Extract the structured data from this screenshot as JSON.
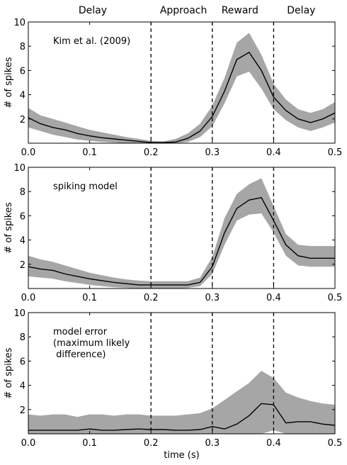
{
  "phase_labels": [
    {
      "text": "Delay",
      "center_t": 0.105
    },
    {
      "text": "Approach",
      "center_t": 0.253
    },
    {
      "text": "Reward",
      "center_t": 0.345
    },
    {
      "text": "Delay",
      "center_t": 0.445
    }
  ],
  "xlabel": "time (s)",
  "colors": {
    "band": "#a6a6a6",
    "mean": "#000000",
    "axes": "#000000"
  },
  "chart_data": [
    {
      "type": "area",
      "annotation": "Kim et al. (2009)",
      "ylabel": "# of spikes",
      "xlim": [
        0,
        0.5
      ],
      "ylim": [
        0,
        10
      ],
      "xticks": [
        0.0,
        0.1,
        0.2,
        0.3,
        0.4,
        0.5
      ],
      "yticks": [
        2,
        4,
        6,
        8,
        10
      ],
      "vlines": [
        0.2,
        0.3,
        0.4
      ],
      "x": [
        0.0,
        0.02,
        0.04,
        0.06,
        0.08,
        0.1,
        0.12,
        0.14,
        0.16,
        0.18,
        0.2,
        0.22,
        0.24,
        0.26,
        0.28,
        0.3,
        0.32,
        0.34,
        0.36,
        0.38,
        0.4,
        0.42,
        0.44,
        0.46,
        0.48,
        0.5
      ],
      "mean": [
        2.1,
        1.6,
        1.3,
        1.1,
        0.8,
        0.6,
        0.45,
        0.35,
        0.25,
        0.15,
        0.05,
        0.05,
        0.1,
        0.4,
        1.0,
        2.2,
        4.3,
        6.9,
        7.5,
        6.0,
        3.8,
        2.7,
        2.0,
        1.7,
        2.0,
        2.5
      ],
      "lower": [
        1.3,
        1.0,
        0.7,
        0.5,
        0.3,
        0.2,
        0.1,
        0.05,
        0.0,
        0.0,
        0.0,
        0.0,
        0.0,
        0.1,
        0.5,
        1.4,
        3.3,
        5.5,
        5.9,
        4.5,
        2.8,
        1.9,
        1.3,
        1.0,
        1.3,
        1.7
      ],
      "upper": [
        2.9,
        2.3,
        2.0,
        1.7,
        1.4,
        1.1,
        0.9,
        0.7,
        0.5,
        0.35,
        0.2,
        0.15,
        0.35,
        0.8,
        1.6,
        3.1,
        5.4,
        8.3,
        9.1,
        7.3,
        4.9,
        3.6,
        2.8,
        2.5,
        2.8,
        3.4
      ]
    },
    {
      "type": "area",
      "annotation": "spiking model",
      "ylabel": "# of spikes",
      "xlim": [
        0,
        0.5
      ],
      "ylim": [
        0,
        10
      ],
      "xticks": [
        0.0,
        0.1,
        0.2,
        0.3,
        0.4,
        0.5
      ],
      "yticks": [
        2,
        4,
        6,
        8,
        10
      ],
      "vlines": [
        0.2,
        0.3,
        0.4
      ],
      "x": [
        0.0,
        0.02,
        0.04,
        0.06,
        0.08,
        0.1,
        0.12,
        0.14,
        0.16,
        0.18,
        0.2,
        0.22,
        0.24,
        0.26,
        0.28,
        0.3,
        0.32,
        0.34,
        0.36,
        0.38,
        0.4,
        0.42,
        0.44,
        0.46,
        0.48,
        0.5
      ],
      "mean": [
        1.8,
        1.6,
        1.5,
        1.2,
        1.0,
        0.8,
        0.65,
        0.5,
        0.4,
        0.3,
        0.3,
        0.3,
        0.3,
        0.3,
        0.5,
        1.8,
        4.6,
        6.6,
        7.3,
        7.5,
        5.6,
        3.6,
        2.7,
        2.5,
        2.5,
        2.5
      ],
      "lower": [
        1.0,
        0.9,
        0.8,
        0.6,
        0.45,
        0.3,
        0.2,
        0.1,
        0.05,
        0.0,
        0.0,
        0.0,
        0.0,
        0.05,
        0.2,
        1.2,
        3.6,
        5.6,
        6.1,
        6.2,
        4.6,
        2.7,
        1.9,
        1.8,
        1.8,
        1.8
      ],
      "upper": [
        2.7,
        2.4,
        2.2,
        1.9,
        1.6,
        1.3,
        1.1,
        0.9,
        0.75,
        0.65,
        0.6,
        0.6,
        0.6,
        0.6,
        0.9,
        2.6,
        5.8,
        7.8,
        8.6,
        9.1,
        6.8,
        4.5,
        3.6,
        3.5,
        3.5,
        3.5
      ]
    },
    {
      "type": "area",
      "annotation": "model error\n(maximum likely\n difference)",
      "ylabel": "# of spikes",
      "xlabel": "time (s)",
      "xlim": [
        0,
        0.5
      ],
      "ylim": [
        0,
        10
      ],
      "xticks": [
        0.0,
        0.1,
        0.2,
        0.3,
        0.4,
        0.5
      ],
      "yticks": [
        2,
        4,
        6,
        8,
        10
      ],
      "vlines": [
        0.2,
        0.3,
        0.4
      ],
      "x": [
        0.0,
        0.02,
        0.04,
        0.06,
        0.08,
        0.1,
        0.12,
        0.14,
        0.16,
        0.18,
        0.2,
        0.22,
        0.24,
        0.26,
        0.28,
        0.3,
        0.32,
        0.34,
        0.36,
        0.38,
        0.4,
        0.42,
        0.44,
        0.46,
        0.48,
        0.5
      ],
      "mean": [
        0.3,
        0.3,
        0.3,
        0.3,
        0.3,
        0.4,
        0.3,
        0.3,
        0.35,
        0.4,
        0.35,
        0.35,
        0.3,
        0.3,
        0.35,
        0.6,
        0.4,
        0.8,
        1.5,
        2.5,
        2.4,
        0.9,
        1.0,
        1.0,
        0.8,
        0.7
      ],
      "lower": [
        0.0,
        0.0,
        0.0,
        0.0,
        0.0,
        0.0,
        0.0,
        0.0,
        0.0,
        0.0,
        0.0,
        0.0,
        0.0,
        0.0,
        0.0,
        0.0,
        0.0,
        0.0,
        0.0,
        0.0,
        0.3,
        0.0,
        0.0,
        0.0,
        0.0,
        0.0
      ],
      "upper": [
        1.6,
        1.5,
        1.6,
        1.6,
        1.4,
        1.6,
        1.6,
        1.5,
        1.6,
        1.6,
        1.5,
        1.5,
        1.5,
        1.6,
        1.7,
        2.1,
        2.8,
        3.5,
        4.2,
        5.2,
        4.6,
        3.4,
        3.0,
        2.7,
        2.5,
        2.4
      ]
    }
  ]
}
